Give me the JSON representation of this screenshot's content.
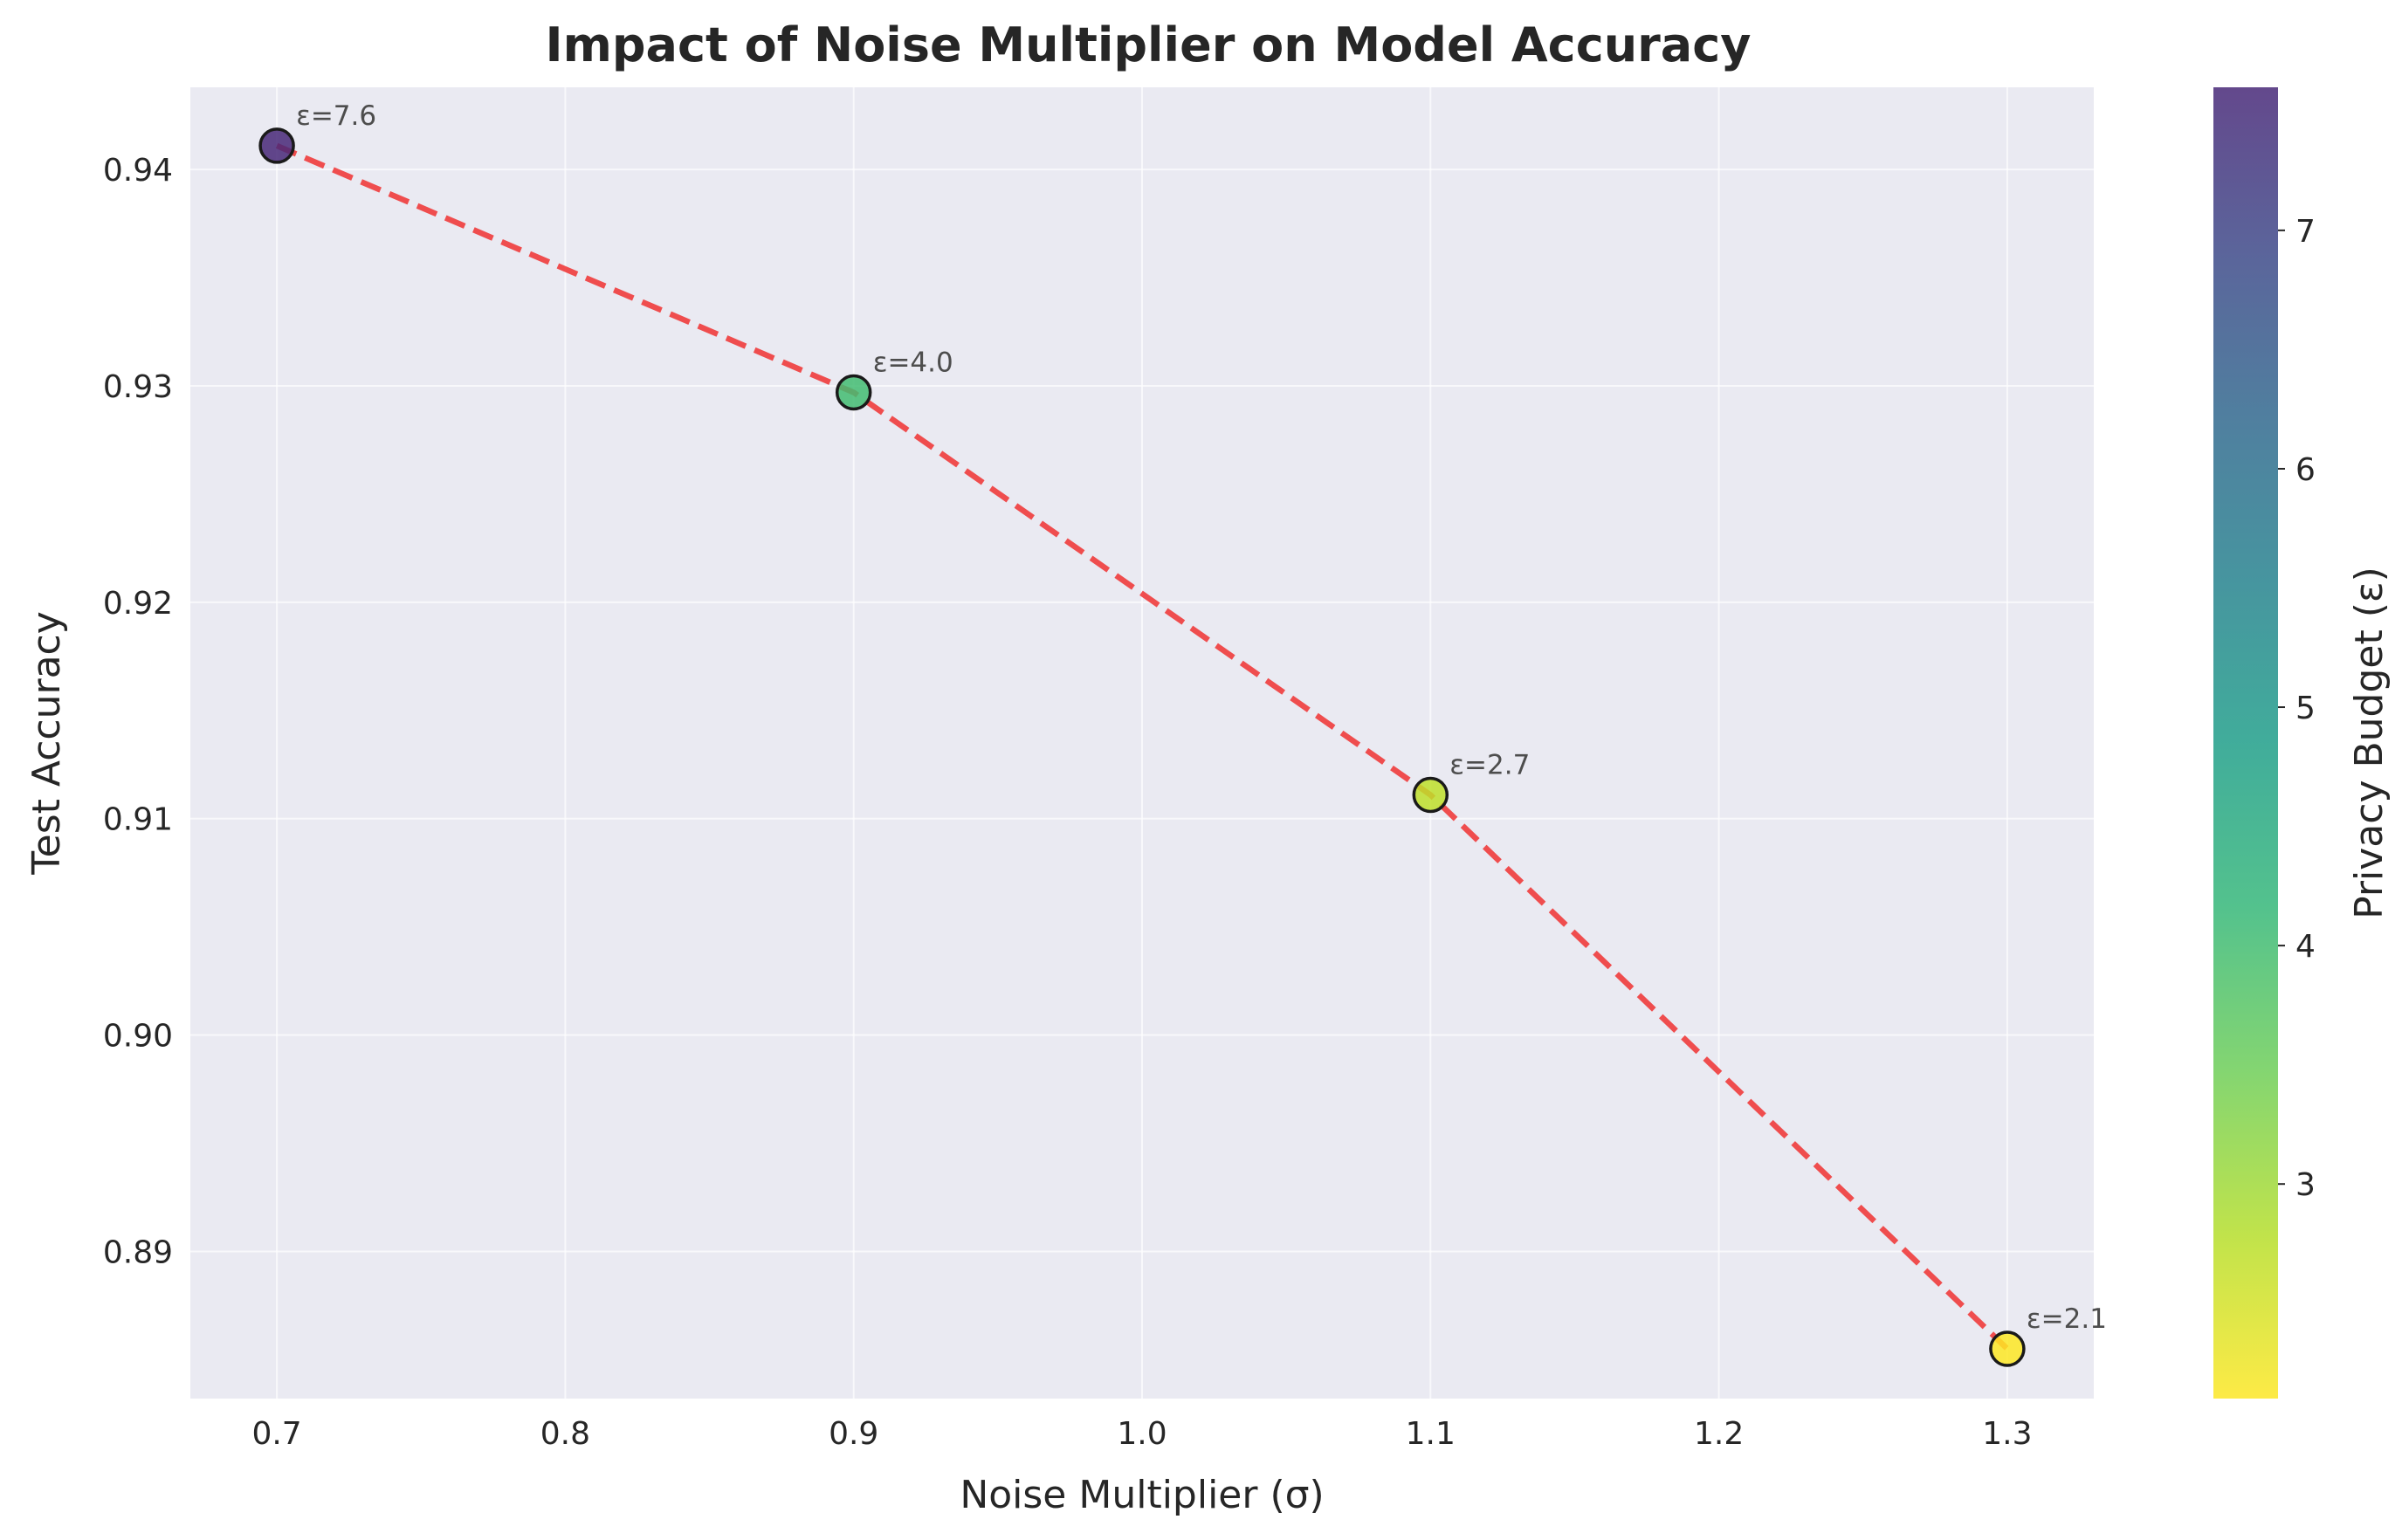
{
  "chart_data": {
    "type": "scatter",
    "title": "Impact of Noise Multiplier on Model Accuracy",
    "xlabel": "Noise Multiplier (σ)",
    "ylabel": "Test Accuracy",
    "xlim": [
      0.67,
      1.33
    ],
    "ylim": [
      0.8832,
      0.9438
    ],
    "xticks": [
      0.7,
      0.8,
      0.9,
      1.0,
      1.1,
      1.2,
      1.3
    ],
    "xtick_labels": [
      "0.7",
      "0.8",
      "0.9",
      "1.0",
      "1.1",
      "1.2",
      "1.3"
    ],
    "yticks": [
      0.89,
      0.9,
      0.91,
      0.92,
      0.93,
      0.94
    ],
    "ytick_labels": [
      "0.89",
      "0.90",
      "0.91",
      "0.92",
      "0.93",
      "0.94"
    ],
    "grid": true,
    "points": [
      {
        "x": 0.7,
        "y": 0.9411,
        "epsilon": 7.6,
        "label": "ε=7.6"
      },
      {
        "x": 0.9,
        "y": 0.9297,
        "epsilon": 4.0,
        "label": "ε=4.0"
      },
      {
        "x": 1.1,
        "y": 0.9111,
        "epsilon": 2.7,
        "label": "ε=2.7"
      },
      {
        "x": 1.3,
        "y": 0.8855,
        "epsilon": 2.1,
        "label": "ε=2.1"
      }
    ],
    "line": {
      "style": "dashed",
      "color": "#f03c3c"
    },
    "colorbar": {
      "label": "Privacy Budget (ε)",
      "colormap": "viridis",
      "range": [
        2.1,
        7.6
      ],
      "ticks": [
        3,
        4,
        5,
        6,
        7
      ],
      "tick_labels": [
        "3",
        "4",
        "5",
        "6",
        "7"
      ]
    },
    "colors": {
      "plot_background": "#eaeaf2",
      "grid": "#ffffff",
      "text": "#262626",
      "annotation": "#4d4d4d"
    }
  }
}
